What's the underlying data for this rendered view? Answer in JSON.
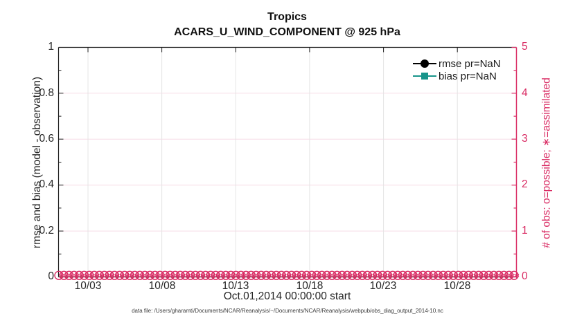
{
  "figure": {
    "title_line1": "Tropics",
    "title_line2": "ACARS_U_WIND_COMPONENT @ 925 hPa",
    "x_axis": {
      "label": "Oct.01,2014 00:00:00 start",
      "ticks": [
        "10/03",
        "10/08",
        "10/13",
        "10/18",
        "10/23",
        "10/28"
      ]
    },
    "left_axis": {
      "label": "rmse and bias (model - observation)",
      "ticks": [
        "0",
        "0.2",
        "0.4",
        "0.6",
        "0.8",
        "1"
      ]
    },
    "right_axis": {
      "label": "# of obs: o=possible; ∗=assimilated",
      "ticks": [
        "0",
        "1",
        "2",
        "3",
        "4",
        "5"
      ]
    },
    "legend": {
      "items": [
        {
          "label": "rmse pr=NaN",
          "color": "#000000",
          "marker": "filled-circle"
        },
        {
          "label": "bias pr=NaN",
          "color": "#17948A",
          "marker": "filled-square"
        }
      ]
    },
    "caption": "data file: /Users/gharamti/Documents/NCAR/Reanalysis/~/Documents/NCAR/Reanalysis/webpub/obs_diag_output_2014-10.nc",
    "colors": {
      "axis": "#1c1c1c",
      "magenta": "#D92B63",
      "teal": "#17948A",
      "grid_vertical": "#e4e4e4",
      "grid_horizontal": "#f7dce5"
    }
  },
  "chart_data": {
    "type": "line",
    "title": "Tropics",
    "subtitle": "ACARS_U_WIND_COMPONENT @ 925 hPa",
    "xlabel": "Oct.01,2014 00:00:00 start",
    "x_tick_labels": [
      "10/03",
      "10/08",
      "10/13",
      "10/18",
      "10/23",
      "10/28"
    ],
    "x_range": [
      "2014-10-01 00:00:00",
      "2014-11-01 00:00:00"
    ],
    "left_axis": {
      "label": "rmse and bias (model - observation)",
      "ylim": [
        0,
        1
      ],
      "tick_step": 0.2
    },
    "right_axis": {
      "label": "# of obs: o=possible; ∗=assimilated",
      "ylim": [
        0,
        5
      ],
      "tick_step": 1,
      "color": "#D92B63"
    },
    "series": [
      {
        "name": "rmse pr=NaN",
        "axis": "left",
        "marker": "filled-circle",
        "color": "#000000",
        "values": "all NaN - no curve drawn"
      },
      {
        "name": "bias pr=NaN",
        "axis": "left",
        "marker": "filled-square",
        "color": "#17948A",
        "values": "all NaN - no curve drawn"
      },
      {
        "name": "# of obs possible (o markers)",
        "axis": "right",
        "marker": "open-circle",
        "color": "#D92B63",
        "constant_value": 0,
        "note": "dense row of markers at 0 spanning the whole month"
      },
      {
        "name": "# of obs assimilated (asterisk markers)",
        "axis": "right",
        "marker": "asterisk",
        "color": "#D92B63",
        "constant_value": 0,
        "note": "dense row of markers at 0 spanning the whole month"
      }
    ],
    "grid": true,
    "legend_position": "upper-right inside, no box"
  }
}
